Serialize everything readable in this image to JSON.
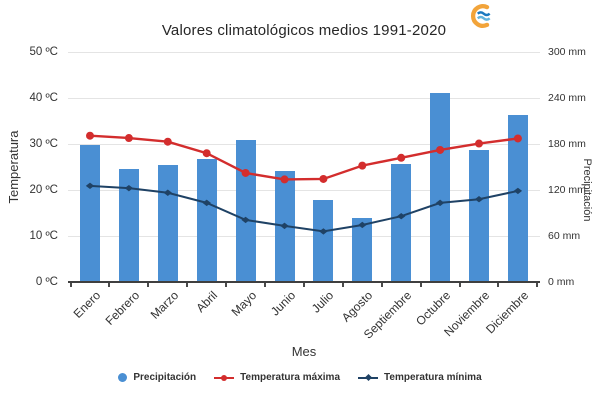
{
  "header": {
    "logo_icon": "aemet-logo",
    "logo_colors": {
      "arc": "#f2a43a",
      "wave_dark": "#1a79c0",
      "wave_light": "#63b4dd"
    }
  },
  "chart_data": {
    "type": "combo-bar-line",
    "title": "Valores climatológicos medios 1991-2020",
    "xlabel": "Mes",
    "ylabel_left": "Temperatura",
    "ylabel_right": "Precipitación",
    "categories": [
      "Enero",
      "Febrero",
      "Marzo",
      "Abril",
      "Mayo",
      "Junio",
      "Julio",
      "Agosto",
      "Septiembre",
      "Octubre",
      "Noviembre",
      "Diciembre"
    ],
    "y_left_range": [
      0,
      50
    ],
    "y_right_range": [
      0,
      300
    ],
    "y_left_ticks": {
      "values": [
        0,
        10,
        20,
        30,
        40,
        50
      ],
      "labels": [
        "0 ºC",
        "10 ºC",
        "20 ºC",
        "30 ºC",
        "40 ºC",
        "50 ºC"
      ]
    },
    "y_right_ticks": {
      "values": [
        0,
        60,
        120,
        180,
        240,
        300
      ],
      "labels": [
        "0 mm",
        "60 mm",
        "120 mm",
        "180 mm",
        "240 mm",
        "300 mm"
      ]
    },
    "grid": true,
    "legend_position": "bottom",
    "series": [
      {
        "name": "Precipitación",
        "type": "bar",
        "axis": "right",
        "unit": "mm",
        "color": "#4a8fd3",
        "values": [
          179,
          148,
          152,
          160,
          185,
          145,
          107,
          84,
          154,
          246,
          172,
          218
        ]
      },
      {
        "name": "Temperatura máxima",
        "type": "line",
        "marker": "circle",
        "axis": "left",
        "unit": "ºC",
        "color": "#d32d2d",
        "values": [
          31.8,
          31.3,
          30.5,
          28.0,
          23.7,
          22.3,
          22.4,
          25.3,
          27.0,
          28.7,
          30.1,
          31.2
        ]
      },
      {
        "name": "Temperatura mínima",
        "type": "line",
        "marker": "diamond",
        "axis": "left",
        "unit": "ºC",
        "color": "#1f4265",
        "values": [
          20.9,
          20.4,
          19.4,
          17.2,
          13.5,
          12.2,
          11.0,
          12.4,
          14.3,
          17.2,
          18.0,
          19.8
        ]
      }
    ],
    "colors": {
      "grid": "#e4e4e4",
      "axis": "#3f3f3f",
      "text": "#333333"
    }
  }
}
